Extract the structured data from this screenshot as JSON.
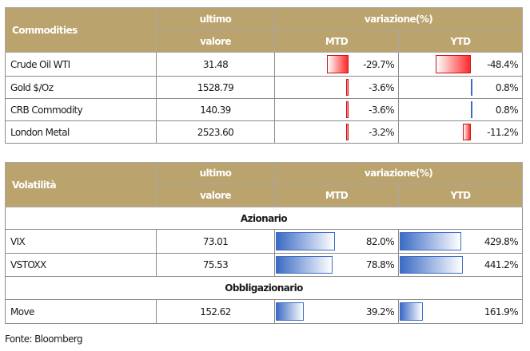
{
  "commodities": {
    "header": {
      "label": "Commodities",
      "ultimo": "ultimo",
      "valore": "valore",
      "variazione": "variazione(%)",
      "mtd": "MTD",
      "ytd": "YTD"
    },
    "rows": [
      {
        "name": "Crude Oil WTI",
        "value": "31.48",
        "mtd": "-29.7%",
        "ytd": "-48.4%"
      },
      {
        "name": "Gold $/Oz",
        "value": "1528.79",
        "mtd": "-3.6%",
        "ytd": "0.8%"
      },
      {
        "name": "CRB Commodity",
        "value": "140.39",
        "mtd": "-3.6%",
        "ytd": "0.8%"
      },
      {
        "name": "London Metal",
        "value": "2523.60",
        "mtd": "-3.2%",
        "ytd": "-11.2%"
      }
    ],
    "bars": [
      {
        "mtd": -29.7,
        "ytd": -48.4
      },
      {
        "mtd": -3.6,
        "ytd": 0.8
      },
      {
        "mtd": -3.6,
        "ytd": 0.8
      },
      {
        "mtd": -3.2,
        "ytd": -11.2
      }
    ]
  },
  "volatility": {
    "header": {
      "label": "Volatilità",
      "ultimo": "ultimo",
      "valore": "valore",
      "variazione": "variazione(%)",
      "mtd": "MTD",
      "ytd": "YTD"
    },
    "section_equity": "Azionario",
    "section_bond": "Obbligazionario",
    "rows": [
      {
        "name": "VIX",
        "value": "73.01",
        "mtd": "82.0%",
        "ytd": "429.8%"
      },
      {
        "name": "VSTOXX",
        "value": "75.53",
        "mtd": "78.8%",
        "ytd": "441.2%"
      },
      {
        "name": "Move",
        "value": "152.62",
        "mtd": "39.2%",
        "ytd": "161.9%"
      }
    ],
    "bars": [
      {
        "mtd": 82.0,
        "ytd": 429.8
      },
      {
        "mtd": 78.8,
        "ytd": 441.2
      },
      {
        "mtd": 39.2,
        "ytd": 161.9
      }
    ]
  },
  "source": "Fonte: Bloomberg"
}
